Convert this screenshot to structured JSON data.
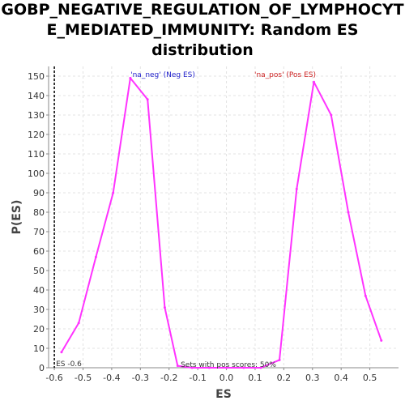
{
  "chart_data": {
    "type": "line",
    "title_lines": [
      "GOBP_NEGATIVE_REGULATION_OF_LYMPHOCYT",
      "E_MEDIATED_IMMUNITY: Random ES",
      "distribution"
    ],
    "xlabel": "ES",
    "ylabel": "P(ES)",
    "xlim": [
      -0.62,
      0.6
    ],
    "ylim": [
      0,
      155
    ],
    "xticks": [
      "-0.6",
      "-0.5",
      "-0.4",
      "-0.3",
      "-0.2",
      "-0.1",
      "0.0",
      "0.1",
      "0.2",
      "0.3",
      "0.4",
      "0.5"
    ],
    "xtick_values": [
      -0.6,
      -0.5,
      -0.4,
      -0.3,
      -0.2,
      -0.1,
      0.0,
      0.1,
      0.2,
      0.3,
      0.4,
      0.5
    ],
    "yticks": [
      0,
      10,
      20,
      30,
      40,
      50,
      60,
      70,
      80,
      90,
      100,
      110,
      120,
      130,
      140,
      150
    ],
    "grid": true,
    "color": "#ff33ff",
    "series": [
      {
        "x": [
          -0.575,
          -0.515,
          -0.455,
          -0.395,
          -0.335,
          -0.275,
          -0.215,
          -0.17,
          -0.12,
          -0.06,
          0.0,
          0.06,
          0.12,
          0.185,
          0.245,
          0.305,
          0.365,
          0.425,
          0.485,
          0.54
        ],
        "values": [
          8,
          23,
          57,
          90,
          149,
          138,
          31,
          1,
          0,
          0,
          0,
          0,
          0,
          4,
          92,
          147,
          130,
          80,
          37,
          14
        ]
      }
    ],
    "annotations": {
      "neg_label": "'na_neg' (Neg ES)",
      "pos_label": "'na_pos' (Pos ES)",
      "neg_color": "#2222cc",
      "pos_color": "#cc2222",
      "es_line_label": "ES -0.6",
      "es_line_value": -0.6,
      "pos_scores_text": "Sets with pos scores: 50%"
    }
  }
}
